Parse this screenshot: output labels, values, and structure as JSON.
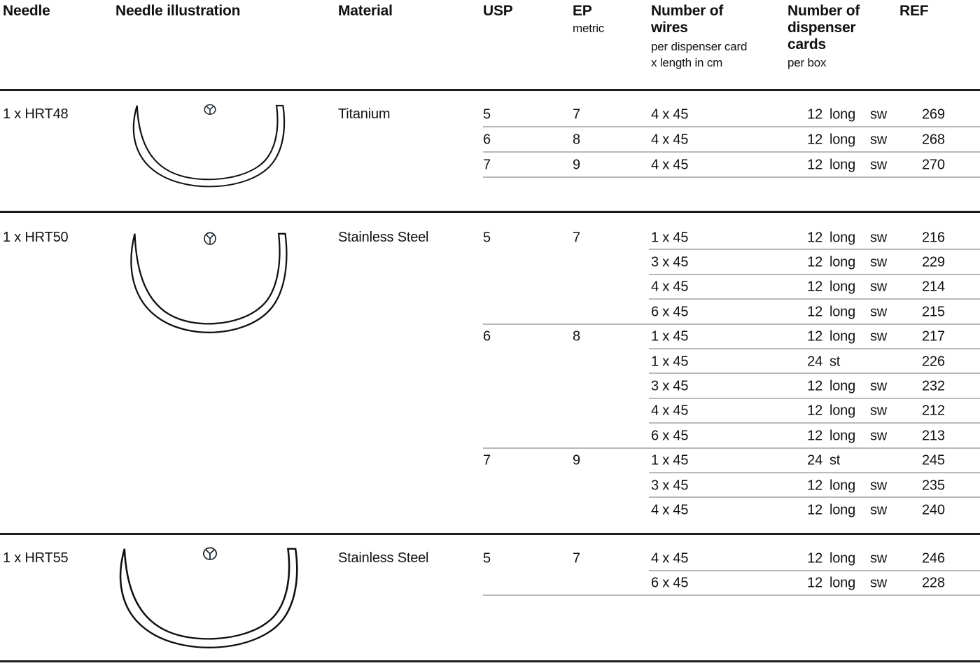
{
  "header": {
    "needle": "Needle",
    "illustration": "Needle illustration",
    "material": "Material",
    "usp": "USP",
    "ep": "EP",
    "ep_sub": "metric",
    "wires": "Number of\nwires",
    "wires_sub": "per dispenser card\nx length in cm",
    "cards": "Number of\ndispenser\ncards",
    "cards_sub": "per box",
    "ref": "REF"
  },
  "colors": {
    "text": "#111111",
    "rule_dark": "#1c1c1c",
    "rule_light": "#b9b9b9",
    "background": "#ffffff"
  },
  "icons": {
    "needle_illustration": "5-8-circle-needle-outline",
    "needle_point_symbol": "round-bodied-needle-circle-symbol"
  },
  "sections": [
    {
      "needle": "1 x HRT48",
      "material": "Titanium",
      "groups": [
        {
          "usp": "5",
          "ep": "7",
          "rows": [
            {
              "wires": "4 x 45",
              "cards": "12",
              "type": "long",
              "attach": "sw",
              "ref": "269"
            }
          ]
        },
        {
          "usp": "6",
          "ep": "8",
          "rows": [
            {
              "wires": "4 x 45",
              "cards": "12",
              "type": "long",
              "attach": "sw",
              "ref": "268"
            }
          ]
        },
        {
          "usp": "7",
          "ep": "9",
          "rows": [
            {
              "wires": "4 x 45",
              "cards": "12",
              "type": "long",
              "attach": "sw",
              "ref": "270"
            }
          ]
        }
      ]
    },
    {
      "needle": "1 x HRT50",
      "material": "Stainless Steel",
      "groups": [
        {
          "usp": "5",
          "ep": "7",
          "rows": [
            {
              "wires": "1 x 45",
              "cards": "12",
              "type": "long",
              "attach": "sw",
              "ref": "216"
            },
            {
              "wires": "3 x 45",
              "cards": "12",
              "type": "long",
              "attach": "sw",
              "ref": "229"
            },
            {
              "wires": "4 x 45",
              "cards": "12",
              "type": "long",
              "attach": "sw",
              "ref": "214"
            },
            {
              "wires": "6 x 45",
              "cards": "12",
              "type": "long",
              "attach": "sw",
              "ref": "215"
            }
          ]
        },
        {
          "usp": "6",
          "ep": "8",
          "rows": [
            {
              "wires": "1 x 45",
              "cards": "12",
              "type": "long",
              "attach": "sw",
              "ref": "217"
            },
            {
              "wires": "1 x 45",
              "cards": "24",
              "type": "st",
              "attach": "",
              "ref": "226"
            },
            {
              "wires": "3 x 45",
              "cards": "12",
              "type": "long",
              "attach": "sw",
              "ref": "232"
            },
            {
              "wires": "4 x 45",
              "cards": "12",
              "type": "long",
              "attach": "sw",
              "ref": "212"
            },
            {
              "wires": "6 x 45",
              "cards": "12",
              "type": "long",
              "attach": "sw",
              "ref": "213"
            }
          ]
        },
        {
          "usp": "7",
          "ep": "9",
          "rows": [
            {
              "wires": "1 x 45",
              "cards": "24",
              "type": "st",
              "attach": "",
              "ref": "245"
            },
            {
              "wires": "3 x 45",
              "cards": "12",
              "type": "long",
              "attach": "sw",
              "ref": "235"
            },
            {
              "wires": "4 x 45",
              "cards": "12",
              "type": "long",
              "attach": "sw",
              "ref": "240"
            }
          ]
        }
      ]
    },
    {
      "needle": "1 x HRT55",
      "material": "Stainless Steel",
      "groups": [
        {
          "usp": "5",
          "ep": "7",
          "rows": [
            {
              "wires": "4 x 45",
              "cards": "12",
              "type": "long",
              "attach": "sw",
              "ref": "246"
            },
            {
              "wires": "6 x 45",
              "cards": "12",
              "type": "long",
              "attach": "sw",
              "ref": "228"
            }
          ]
        }
      ]
    }
  ]
}
